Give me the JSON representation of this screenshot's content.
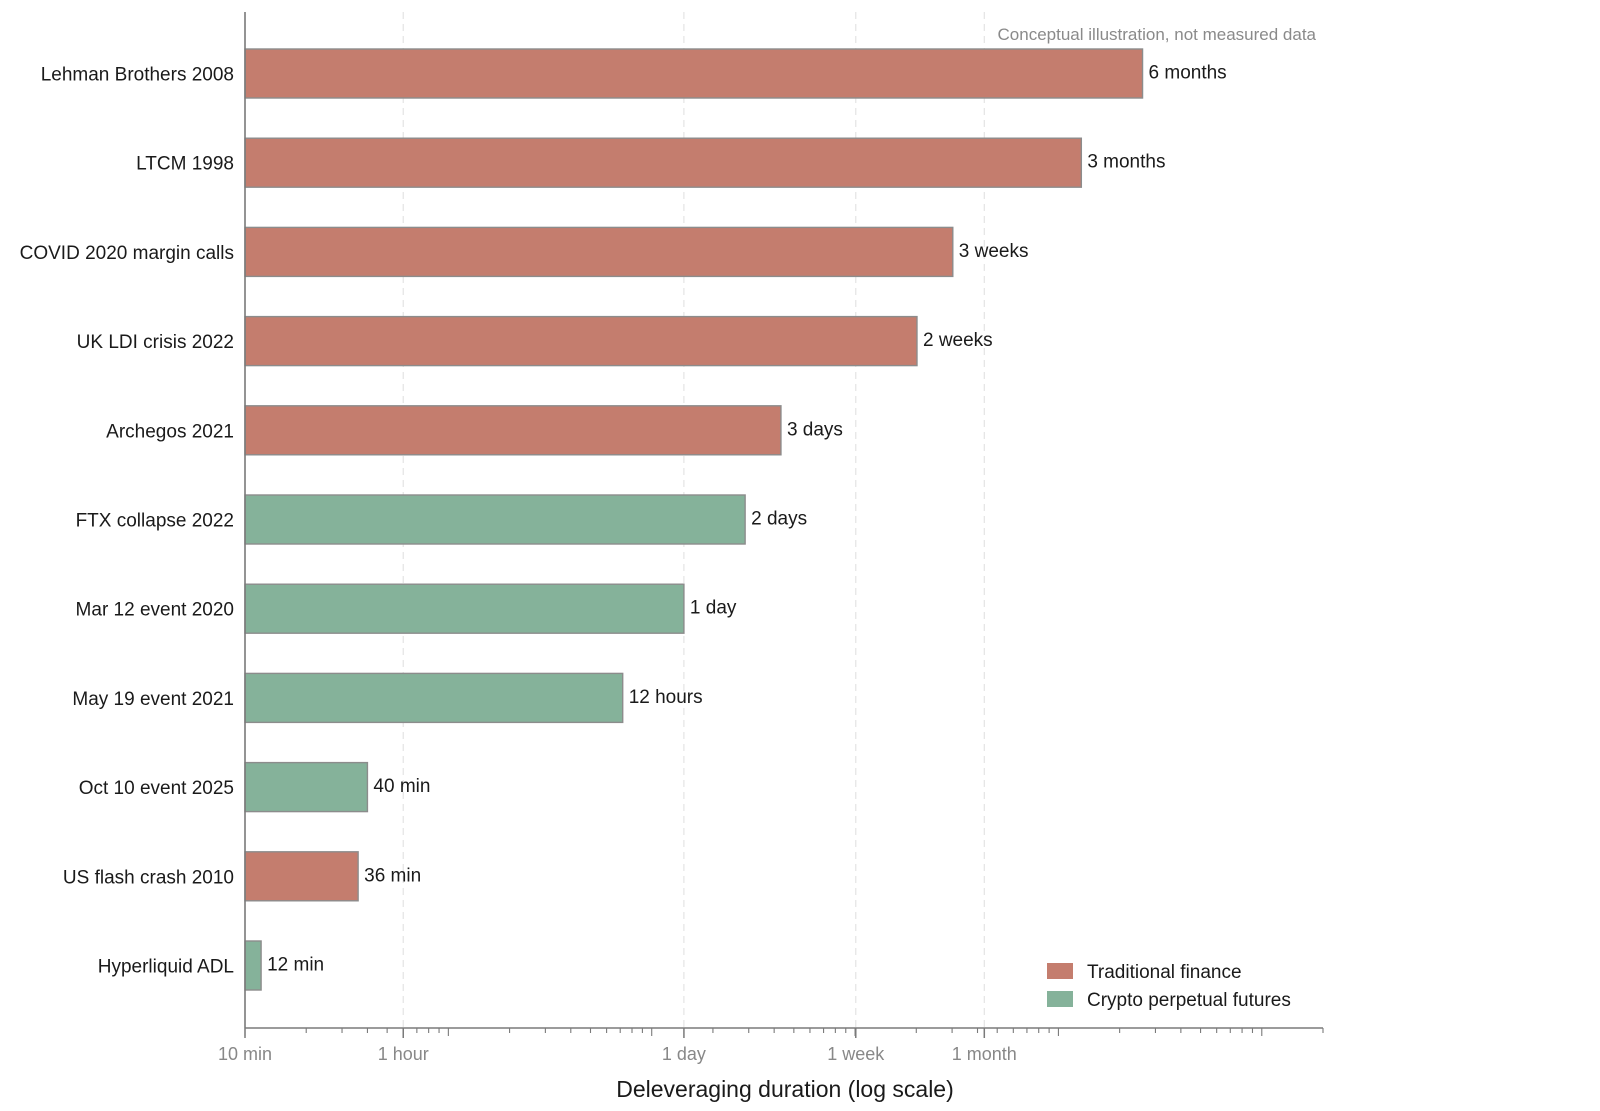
{
  "chart_data": {
    "type": "bar",
    "orientation": "horizontal",
    "xlabel": "Deleveraging duration (log scale)",
    "x_scale": "log",
    "x_unit": "minutes",
    "xlim": [
      10,
      2000000
    ],
    "x_ticks": [
      {
        "value": 10,
        "label": "10 min"
      },
      {
        "value": 60,
        "label": "1 hour"
      },
      {
        "value": 1440,
        "label": "1 day"
      },
      {
        "value": 10080,
        "label": "1 week"
      },
      {
        "value": 43200,
        "label": "1 month"
      }
    ],
    "grid": true,
    "legend_position": "bottom-right",
    "annotation": "Conceptual illustration, not measured data",
    "groups": [
      {
        "key": "tradfi",
        "name": "Traditional finance",
        "color": "#c47d6e"
      },
      {
        "key": "crypto",
        "name": "Crypto perpetual futures",
        "color": "#85b29a"
      }
    ],
    "bars": [
      {
        "category": "Lehman Brothers 2008",
        "value": 259200,
        "label": "6 months",
        "group": "tradfi"
      },
      {
        "category": "LTCM 1998",
        "value": 129600,
        "label": "3 months",
        "group": "tradfi"
      },
      {
        "category": "COVID 2020 margin calls",
        "value": 30240,
        "label": "3 weeks",
        "group": "tradfi"
      },
      {
        "category": "UK LDI crisis 2022",
        "value": 20160,
        "label": "2 weeks",
        "group": "tradfi"
      },
      {
        "category": "Archegos 2021",
        "value": 4320,
        "label": "3 days",
        "group": "tradfi"
      },
      {
        "category": "FTX collapse 2022",
        "value": 2880,
        "label": "2 days",
        "group": "crypto"
      },
      {
        "category": "Mar 12 event 2020",
        "value": 1440,
        "label": "1 day",
        "group": "crypto"
      },
      {
        "category": "May 19 event 2021",
        "value": 720,
        "label": "12 hours",
        "group": "crypto"
      },
      {
        "category": "Oct 10 event 2025",
        "value": 40,
        "label": "40 min",
        "group": "crypto"
      },
      {
        "category": "US flash crash 2010",
        "value": 36,
        "label": "36 min",
        "group": "tradfi"
      },
      {
        "category": "Hyperliquid ADL",
        "value": 12,
        "label": "12 min",
        "group": "crypto"
      }
    ]
  }
}
